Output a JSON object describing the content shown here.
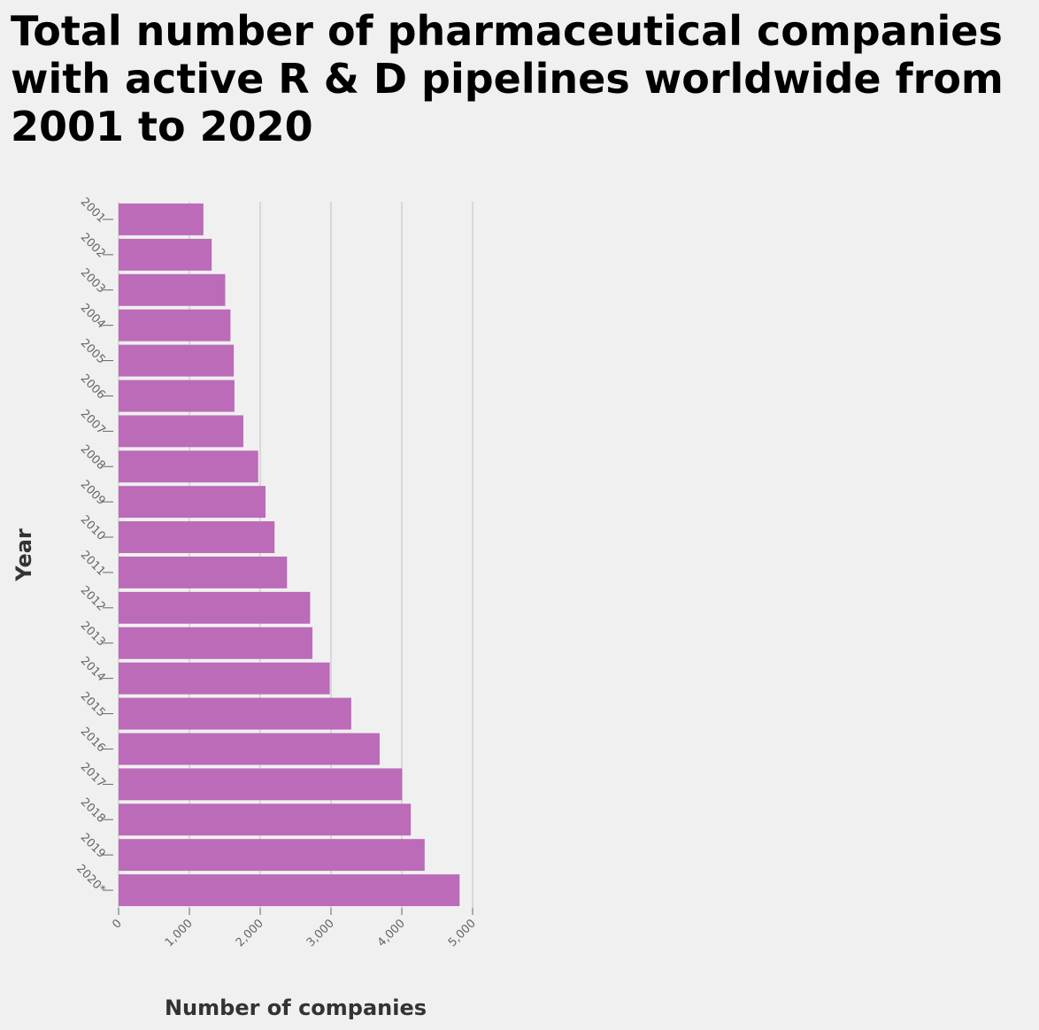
{
  "chart_data": {
    "type": "bar",
    "orientation": "horizontal",
    "title": "Total number of pharmaceutical companies with active R & D pipelines worldwide from 2001 to 2020",
    "xlabel": "Number of companies",
    "ylabel": "Year",
    "categories": [
      "2001",
      "2002",
      "2003",
      "2004",
      "2005",
      "2006",
      "2007",
      "2008",
      "2009",
      "2010",
      "2011",
      "2012",
      "2013",
      "2014",
      "2015",
      "2016",
      "2017",
      "2018",
      "2019",
      "2020*"
    ],
    "values": [
      1198,
      1315,
      1506,
      1580,
      1627,
      1636,
      1762,
      1972,
      2075,
      2203,
      2379,
      2705,
      2738,
      2983,
      3286,
      3687,
      4005,
      4127,
      4323,
      4816
    ],
    "xlim": [
      0,
      5000
    ],
    "xticks": [
      0,
      1000,
      2000,
      3000,
      4000,
      5000
    ],
    "xtick_labels": [
      "0",
      "1,000",
      "2,000",
      "3,000",
      "4,000",
      "5,000"
    ],
    "grid": "vertical",
    "bar_color": "#bb6bb8"
  }
}
